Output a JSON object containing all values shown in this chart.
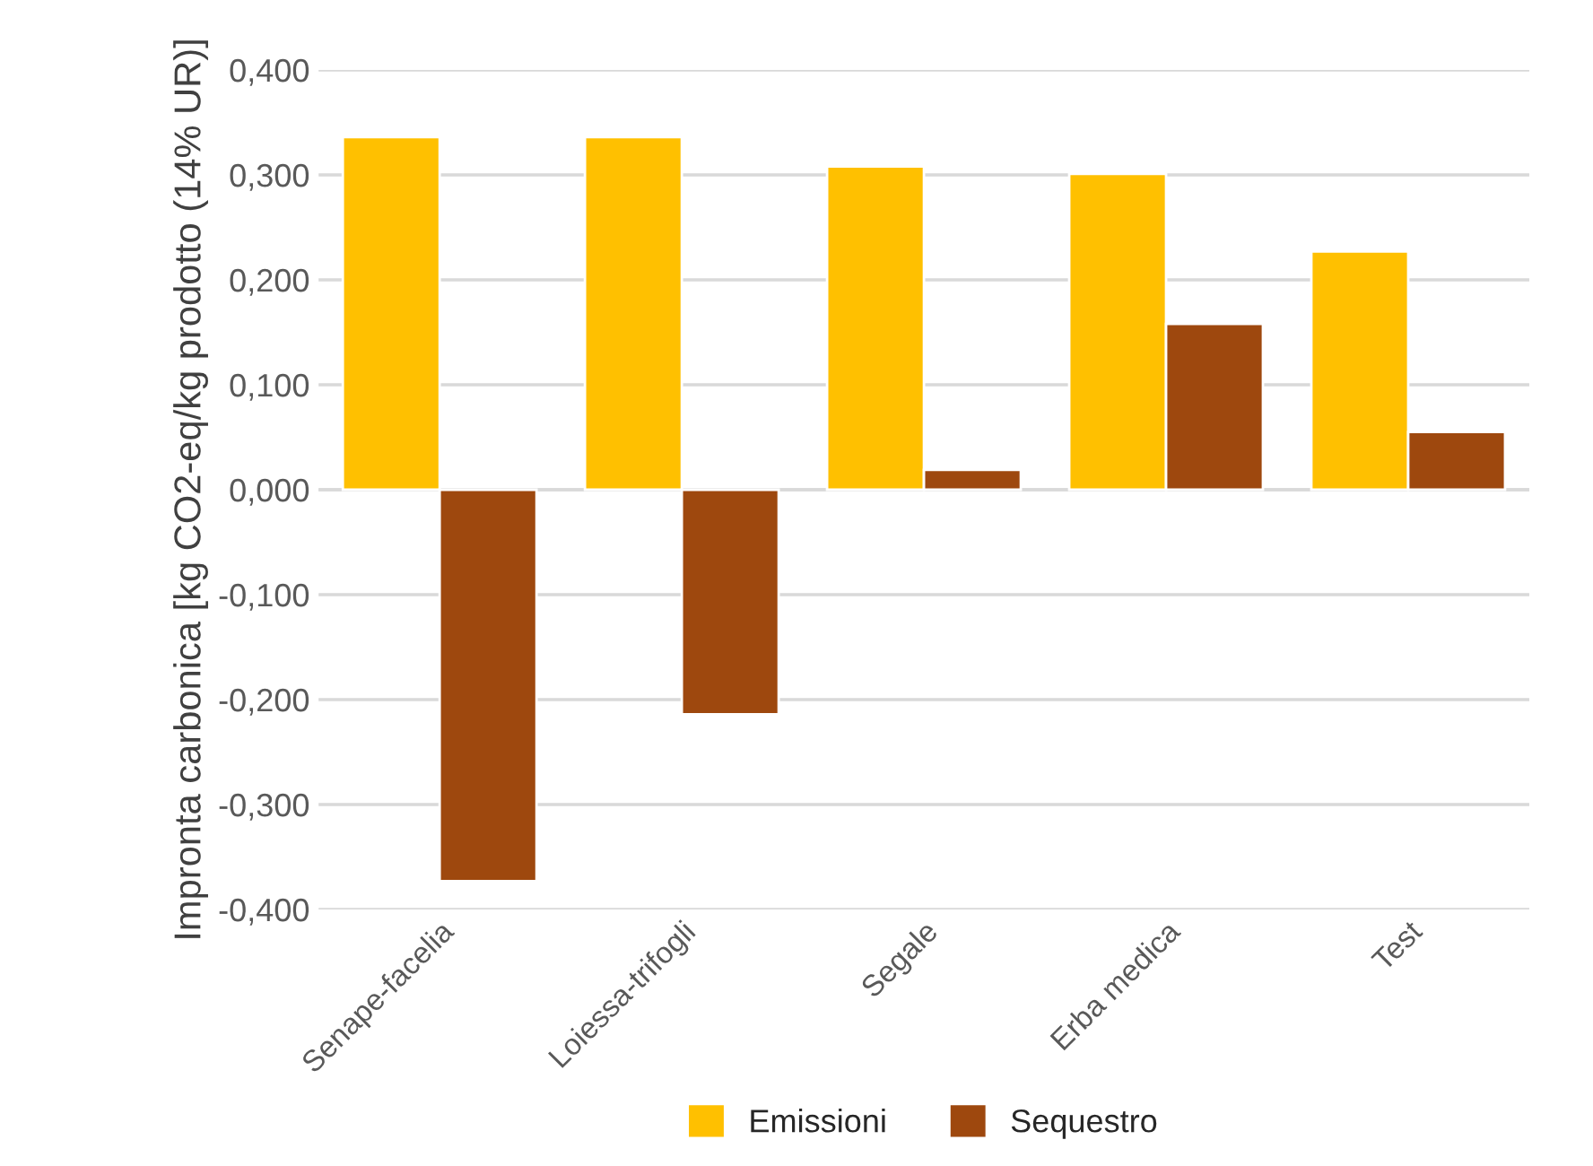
{
  "chart_data": {
    "type": "bar",
    "ylabel": "Impronta carbonica [kg CO2-eq/kg prodotto (14% UR)]",
    "categories": [
      "Senape-facelia",
      "Loiessa-trifogli",
      "Segale",
      "Erba medica",
      "Test"
    ],
    "series": [
      {
        "name": "Emissioni",
        "color": "#ffc000",
        "values": [
          0.336,
          0.336,
          0.308,
          0.301,
          0.227
        ]
      },
      {
        "name": "Sequestro",
        "color": "#9e480e",
        "values": [
          -0.373,
          -0.214,
          0.019,
          0.158,
          0.055
        ]
      }
    ],
    "ylim": [
      -0.4,
      0.4
    ],
    "yticks": [
      {
        "value": -0.4,
        "label": "-0,400"
      },
      {
        "value": -0.3,
        "label": "-0,300"
      },
      {
        "value": -0.2,
        "label": "-0,200"
      },
      {
        "value": -0.1,
        "label": "-0,100"
      },
      {
        "value": 0,
        "label": "0,000"
      },
      {
        "value": 0.1,
        "label": "0,100"
      },
      {
        "value": 0.2,
        "label": "0,200"
      },
      {
        "value": 0.3,
        "label": "0,300"
      },
      {
        "value": 0.4,
        "label": "0,400"
      }
    ],
    "grid": "y",
    "legend": "bottom"
  }
}
